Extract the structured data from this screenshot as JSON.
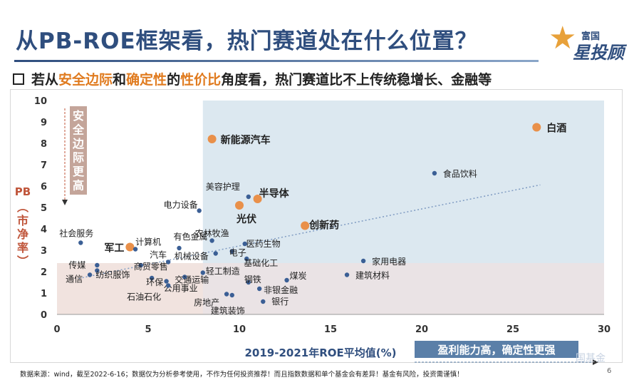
{
  "header": {
    "title": "从PB-ROE框架看，热门赛道处在什么位置？",
    "logo_top": "富国",
    "logo_main": "星投顾",
    "subtitle_parts": [
      "若从",
      "安全边际",
      "和",
      "确定性",
      "的",
      "性价比",
      "角度看，热门赛道比不上传统稳增长、金融等"
    ]
  },
  "footer": {
    "note": "数据来源：wind，截至2022-6-16；数据仅为分析参考使用，不作为任何投资推荐！而且指数数据和单个基金会有差异！基金有风险，投资需谨慎！",
    "page": "6",
    "watermark": "国基金"
  },
  "colors": {
    "point_blue": "#3b5f95",
    "point_orange": "#e9904a",
    "region_top": "#dce8f0",
    "region_bottom": "#f1e3df",
    "safety_box": "#c4a59a",
    "cert_box": "#5a7fa8",
    "trend": "#7f9bc2"
  },
  "chart_data": {
    "type": "scatter",
    "xlabel": "2019-2021年ROE平均值(%)",
    "ylabel": "PB（市净率）",
    "xlim": [
      0,
      30
    ],
    "ylim": [
      0,
      10
    ],
    "xticks": [
      "0",
      "5",
      "10",
      "15",
      "20",
      "25",
      "30"
    ],
    "yticks": [
      "0",
      "1",
      "2",
      "3",
      "4",
      "5",
      "6",
      "7",
      "8",
      "9",
      "10"
    ],
    "annotations": {
      "safety": "安全边际更高",
      "certainty": "盈利能力高，确定性更强"
    },
    "points": [
      {
        "label": "白酒",
        "x": 26.3,
        "y": 8.75,
        "highlight": true
      },
      {
        "label": "新能源汽车",
        "x": 8.5,
        "y": 8.2,
        "highlight": true
      },
      {
        "label": "半导体",
        "x": 11.0,
        "y": 5.4,
        "highlight": true
      },
      {
        "label": "光伏",
        "x": 10.0,
        "y": 5.1,
        "highlight": true
      },
      {
        "label": "创新药",
        "x": 13.6,
        "y": 4.15,
        "highlight": true
      },
      {
        "label": "军工",
        "x": 4.0,
        "y": 3.15,
        "highlight": true
      },
      {
        "label": "食品饮料",
        "x": 20.7,
        "y": 6.6,
        "highlight": false
      },
      {
        "label": "美容护理",
        "x": 10.5,
        "y": 5.5,
        "highlight": false
      },
      {
        "label": "电力设备",
        "x": 7.8,
        "y": 4.85,
        "highlight": false
      },
      {
        "label": "社会服务",
        "x": 1.3,
        "y": 3.35,
        "highlight": false
      },
      {
        "label": "计算机",
        "x": 4.3,
        "y": 3.05,
        "highlight": false
      },
      {
        "label": "有色金属",
        "x": 6.7,
        "y": 3.1,
        "highlight": false
      },
      {
        "label": "农林牧渔",
        "x": 8.5,
        "y": 3.45,
        "highlight": false
      },
      {
        "label": "医药生物",
        "x": 10.3,
        "y": 3.3,
        "highlight": false
      },
      {
        "label": "电子",
        "x": 9.6,
        "y": 2.95,
        "highlight": false
      },
      {
        "label": "机械设备",
        "x": 8.7,
        "y": 2.85,
        "highlight": false
      },
      {
        "label": "基础化工",
        "x": 10.4,
        "y": 2.6,
        "highlight": false
      },
      {
        "label": "汽车",
        "x": 6.1,
        "y": 2.45,
        "highlight": false
      },
      {
        "label": "家用电器",
        "x": 16.8,
        "y": 2.5,
        "highlight": false
      },
      {
        "label": "传媒",
        "x": 2.2,
        "y": 2.3,
        "highlight": false
      },
      {
        "label": "商贸零售",
        "x": 4.6,
        "y": 2.3,
        "highlight": false
      },
      {
        "label": "通信",
        "x": 1.8,
        "y": 1.85,
        "highlight": false
      },
      {
        "label": "纺织服饰",
        "x": 2.2,
        "y": 2.05,
        "highlight": false
      },
      {
        "label": "建筑材料",
        "x": 15.9,
        "y": 1.85,
        "highlight": false
      },
      {
        "label": "轻工制造",
        "x": 8.0,
        "y": 1.95,
        "highlight": false
      },
      {
        "label": "交通运输",
        "x": 7.0,
        "y": 1.75,
        "highlight": false
      },
      {
        "label": "环保",
        "x": 5.2,
        "y": 1.7,
        "highlight": false
      },
      {
        "label": "煤炭",
        "x": 12.6,
        "y": 1.6,
        "highlight": false
      },
      {
        "label": "钢铁",
        "x": 10.5,
        "y": 1.5,
        "highlight": false
      },
      {
        "label": "公用事业",
        "x": 6.0,
        "y": 1.55,
        "highlight": false
      },
      {
        "label": "石油石化",
        "x": 6.1,
        "y": 1.35,
        "highlight": false
      },
      {
        "label": "非银金融",
        "x": 11.1,
        "y": 1.2,
        "highlight": false
      },
      {
        "label": "房地产",
        "x": 9.3,
        "y": 0.95,
        "highlight": false
      },
      {
        "label": "建筑装饰",
        "x": 9.6,
        "y": 0.9,
        "highlight": false
      },
      {
        "label": "银行",
        "x": 11.3,
        "y": 0.6,
        "highlight": false
      }
    ]
  }
}
